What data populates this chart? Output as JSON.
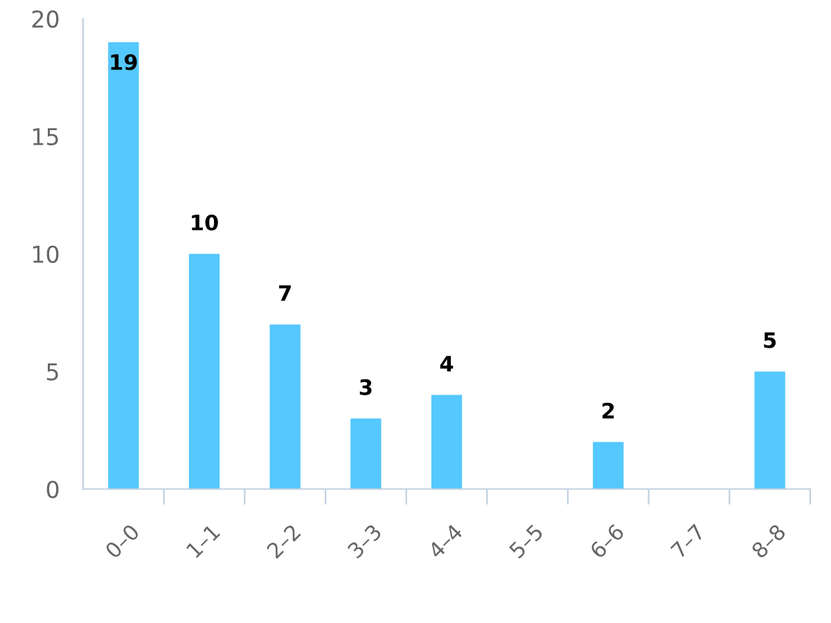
{
  "chart_data": {
    "type": "bar",
    "categories": [
      "0–0",
      "1–1",
      "2–2",
      "3–3",
      "4–4",
      "5–5",
      "6–6",
      "7–7",
      "8–8"
    ],
    "values": [
      19,
      10,
      7,
      3,
      4,
      null,
      2,
      null,
      5
    ],
    "color": "#55c8fd",
    "ylim": [
      0,
      20
    ],
    "yticks": [
      0,
      5,
      10,
      15,
      20
    ],
    "grid": false,
    "legend": false,
    "data_labels": true
  }
}
